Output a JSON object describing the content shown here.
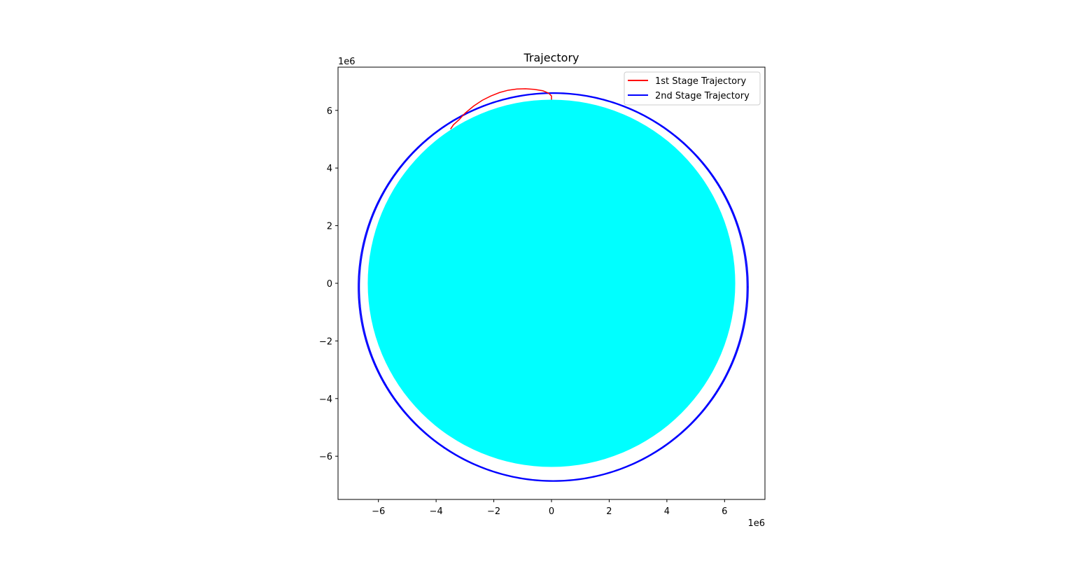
{
  "chart_data": {
    "type": "line",
    "title": "Trajectory",
    "xlabel": "",
    "ylabel": "",
    "x_offset_label": "1e6",
    "y_offset_label": "1e6",
    "xlim": [
      -7.4,
      7.4
    ],
    "ylim": [
      -7.5,
      7.5
    ],
    "xticks": [
      -6,
      -4,
      -2,
      0,
      2,
      4,
      6
    ],
    "yticks": [
      -6,
      -4,
      -2,
      0,
      2,
      4,
      6
    ],
    "grid": false,
    "legend_position": "top-right",
    "planet": {
      "center": [
        0,
        0
      ],
      "radius": 6.37,
      "color": "#00ffff"
    },
    "series": [
      {
        "name": "1st Stage Trajectory",
        "color": "#ff0000",
        "x": [
          0.0,
          0.0,
          -0.1,
          -0.3,
          -0.6,
          -0.9,
          -1.2,
          -1.5,
          -1.8,
          -2.1,
          -2.4,
          -2.7,
          -3.0,
          -3.2,
          -3.4,
          -3.5
        ],
        "y": [
          6.37,
          6.5,
          6.6,
          6.68,
          6.73,
          6.75,
          6.74,
          6.7,
          6.62,
          6.5,
          6.35,
          6.15,
          5.9,
          5.68,
          5.5,
          5.35
        ]
      },
      {
        "name": "2nd Stage Trajectory",
        "color": "#0000ff",
        "orbit": {
          "center_x": 0.06,
          "center_y": -0.13,
          "semi_x": 6.72,
          "semi_y": 6.72,
          "laps": 2,
          "lap_offset": 0.04
        }
      }
    ]
  }
}
